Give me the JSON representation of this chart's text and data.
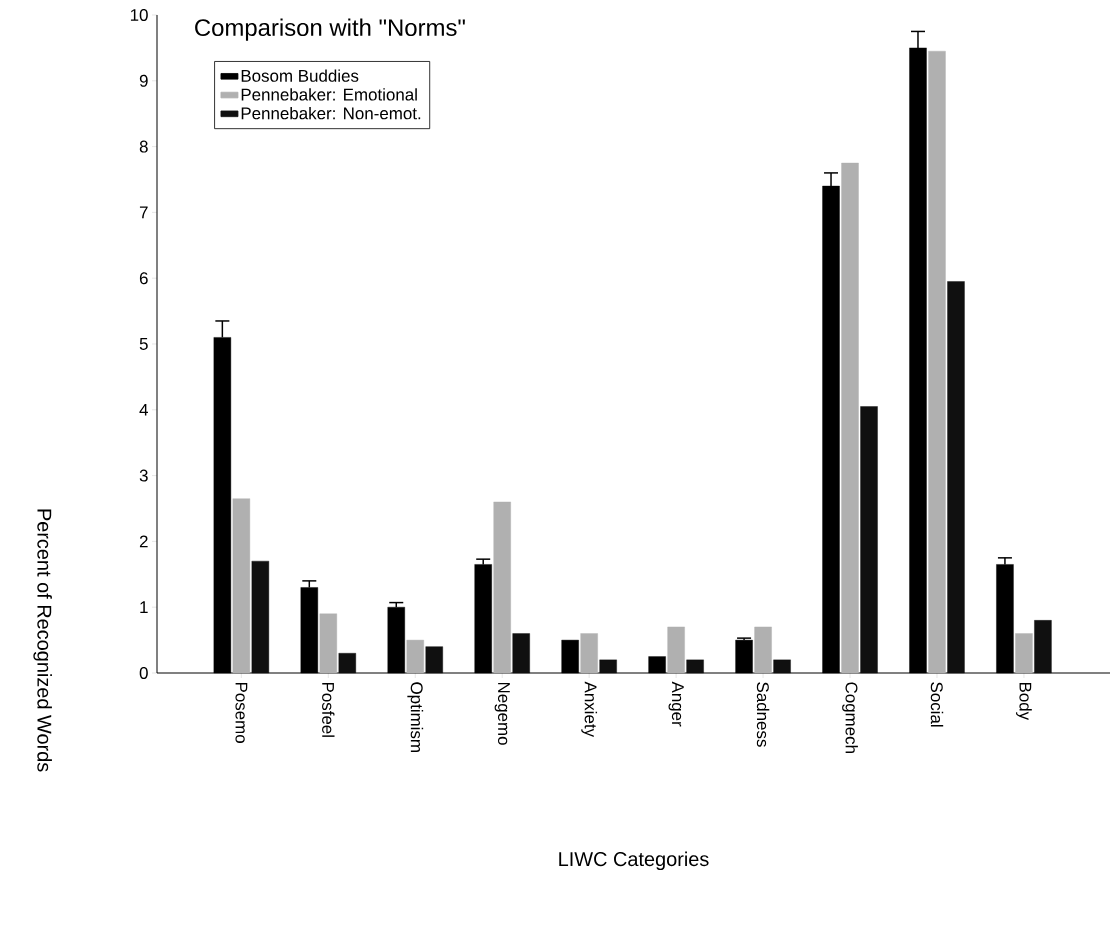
{
  "chart_data": {
    "type": "bar",
    "title": "Comparison with \"Norms\"",
    "xlabel": "LIWC Categories",
    "ylabel": "Percent of Recognized Words",
    "categories": [
      "Posemo",
      "Posfeel",
      "Optimism",
      "Negemo",
      "Anxiety",
      "Anger",
      "Sadness",
      "Cogmech",
      "Social",
      "Body"
    ],
    "series": [
      {
        "name": "Bosom Buddies",
        "color": "#000000",
        "values": [
          5.1,
          1.3,
          1.0,
          1.65,
          0.5,
          0.25,
          0.5,
          7.4,
          9.5,
          1.65
        ],
        "errors": [
          0.25,
          0.1,
          0.07,
          0.08,
          null,
          null,
          0.03,
          0.2,
          0.25,
          0.1
        ]
      },
      {
        "name": "Pennebaker: Emotional",
        "color": "#b0b0b0",
        "values": [
          2.65,
          0.9,
          0.5,
          2.6,
          0.6,
          0.7,
          0.7,
          7.75,
          9.45,
          0.6
        ]
      },
      {
        "name": "Pennebaker: Non-emot.",
        "color": "#101010",
        "values": [
          1.7,
          0.3,
          0.4,
          0.6,
          0.2,
          0.2,
          0.2,
          4.05,
          5.95,
          0.8
        ]
      }
    ],
    "ylim": [
      0,
      10
    ],
    "yticks": [
      0,
      1,
      2,
      3,
      4,
      5,
      6,
      7,
      8,
      9,
      10
    ],
    "legend": "top left"
  }
}
